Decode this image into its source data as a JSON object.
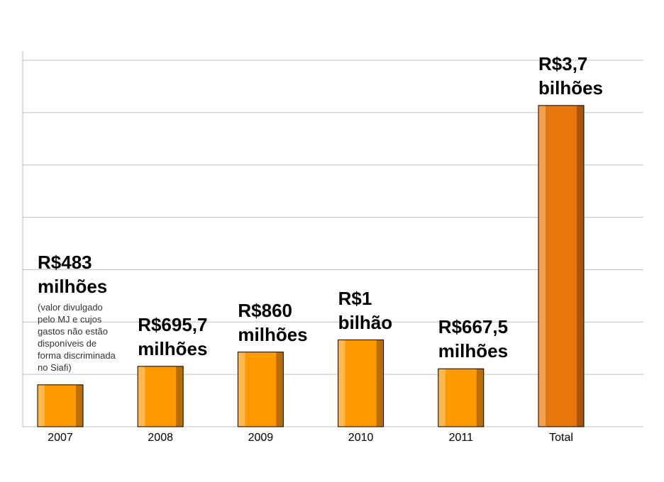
{
  "chart_data": {
    "type": "bar",
    "title": "",
    "xlabel": "",
    "ylabel": "",
    "categories": [
      "2007",
      "2008",
      "2009",
      "2010",
      "2011",
      "Total"
    ],
    "values": [
      0.483,
      0.6957,
      0.86,
      1.0,
      0.6675,
      3.7
    ],
    "unit": "R$ bilhões",
    "data_labels": [
      "R$483\nmilhões",
      "R$695,7\nmilhões",
      "R$860\nmilhões",
      "R$1\nbilhão",
      "R$667,5\nmilhões",
      "R$3,7\nbilhões"
    ],
    "annotations": [
      "(valor divulgado\npelo MJ e cujos\ngastos não estão\ndisponíveis de\nforma discriminada\nno Siafi)"
    ],
    "ylim": [
      0,
      4.2
    ],
    "ytick_step": 0.6,
    "grid": true,
    "legend": "none",
    "colors": {
      "bar": "#FF9900",
      "bar_light": "#FFB84D",
      "bar_dark": "#B86E00",
      "total": "#E8770B",
      "total_light": "#F0A050",
      "total_dark": "#A85508",
      "grid": "#C0C0C0"
    }
  }
}
